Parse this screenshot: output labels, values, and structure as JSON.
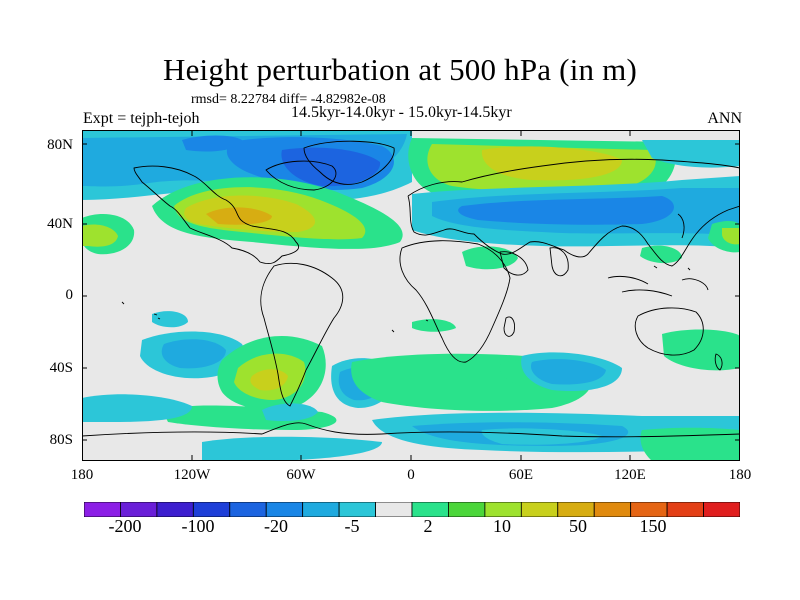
{
  "title": "Height perturbation at 500 hPa (in m)",
  "stats_line": "rmsd= 8.22784  diff= -4.82982e-08",
  "period": "14.5kyr-14.0kyr - 15.0kyr-14.5kyr",
  "left_label": "Expt = tejph-tejoh",
  "right_label": "ANN",
  "map": {
    "lat_ticks": [
      "80N",
      "40N",
      "0",
      "40S",
      "80S"
    ],
    "lon_ticks": [
      "180",
      "120W",
      "60W",
      "0",
      "60E",
      "120E",
      "180"
    ]
  },
  "colorbar": {
    "colors": [
      "#8c1fe6",
      "#6a1fd8",
      "#3d1fcf",
      "#1e3fd8",
      "#1c64e0",
      "#1a86e6",
      "#1faadf",
      "#2cc6d8",
      "#e8e8e8",
      "#2ae28b",
      "#4bd63a",
      "#9ee22e",
      "#c8d01c",
      "#d7ad12",
      "#e08a0e",
      "#e56514",
      "#e33f16",
      "#e01e1e"
    ],
    "labels": [
      "-200",
      "-100",
      "-20",
      "-5",
      "2",
      "10",
      "50",
      "150"
    ]
  }
}
